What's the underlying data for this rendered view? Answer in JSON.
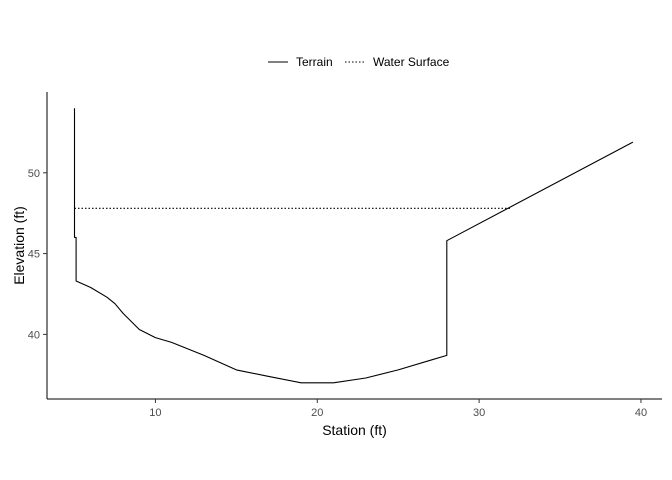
{
  "chart_data": {
    "type": "line",
    "xlabel": "Station (ft)",
    "ylabel": "Elevation (ft)",
    "xlim": [
      3.3,
      41.3
    ],
    "ylim": [
      36.0,
      55.0
    ],
    "xticks": [
      10,
      20,
      30,
      40
    ],
    "yticks": [
      40,
      45,
      50
    ],
    "grid": false,
    "legend_position": "top",
    "series": [
      {
        "name": "Terrain",
        "line_style": "solid",
        "color": "#000000",
        "x": [
          5.0,
          5.0,
          5.1,
          5.1,
          6.0,
          7.0,
          7.5,
          8.0,
          9.0,
          10.0,
          11.0,
          13.0,
          15.0,
          17.0,
          19.0,
          21.0,
          23.0,
          25.0,
          27.0,
          28.0,
          28.0,
          39.5
        ],
        "y": [
          54.0,
          46.0,
          46.0,
          43.3,
          42.9,
          42.3,
          41.9,
          41.3,
          40.3,
          39.8,
          39.5,
          38.7,
          37.8,
          37.4,
          37.0,
          37.0,
          37.3,
          37.8,
          38.4,
          38.7,
          45.8,
          51.9
        ]
      },
      {
        "name": "Water Surface",
        "line_style": "dotted",
        "color": "#000000",
        "x": [
          5.0,
          32.0
        ],
        "y": [
          47.8,
          47.8
        ]
      }
    ]
  }
}
